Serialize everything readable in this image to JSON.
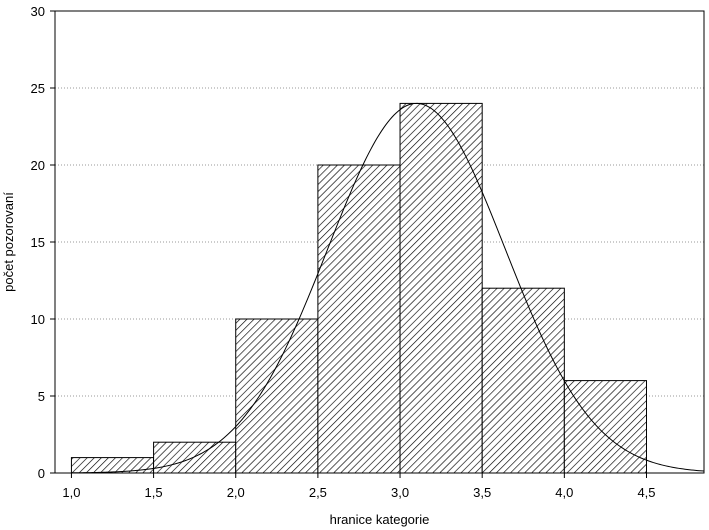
{
  "chart_data": {
    "type": "bar",
    "subtype": "histogram",
    "xlabel": "hranice kategorie",
    "ylabel": "počet pozorovaní",
    "xlim": [
      0.9,
      4.85
    ],
    "ylim": [
      0,
      30
    ],
    "x_ticks": [
      1.0,
      1.5,
      2.0,
      2.5,
      3.0,
      3.5,
      4.0,
      4.5
    ],
    "x_tick_labels": [
      "1,0",
      "1,5",
      "2,0",
      "2,5",
      "3,0",
      "3,5",
      "4,0",
      "4,5"
    ],
    "y_ticks": [
      0,
      5,
      10,
      15,
      20,
      25,
      30
    ],
    "y_tick_labels": [
      "0",
      "5",
      "10",
      "15",
      "20",
      "25",
      "30"
    ],
    "grid": "horizontal dotted",
    "bins": [
      {
        "from": 1.0,
        "to": 1.5,
        "count": 1
      },
      {
        "from": 1.5,
        "to": 2.0,
        "count": 2
      },
      {
        "from": 2.0,
        "to": 2.5,
        "count": 10
      },
      {
        "from": 2.5,
        "to": 3.0,
        "count": 20
      },
      {
        "from": 3.0,
        "to": 3.5,
        "count": 24
      },
      {
        "from": 3.5,
        "to": 4.0,
        "count": 12
      },
      {
        "from": 4.0,
        "to": 4.5,
        "count": 6
      }
    ],
    "fitted_curve": {
      "type": "normal",
      "mean": 3.1,
      "peak": 24,
      "sd": 0.54
    },
    "bar_fill": "diagonal hatch",
    "colors": {
      "bar_fill": "#ffffff",
      "hatch": "#000000",
      "curve": "#000000",
      "grid": "#9a9a9a"
    }
  }
}
